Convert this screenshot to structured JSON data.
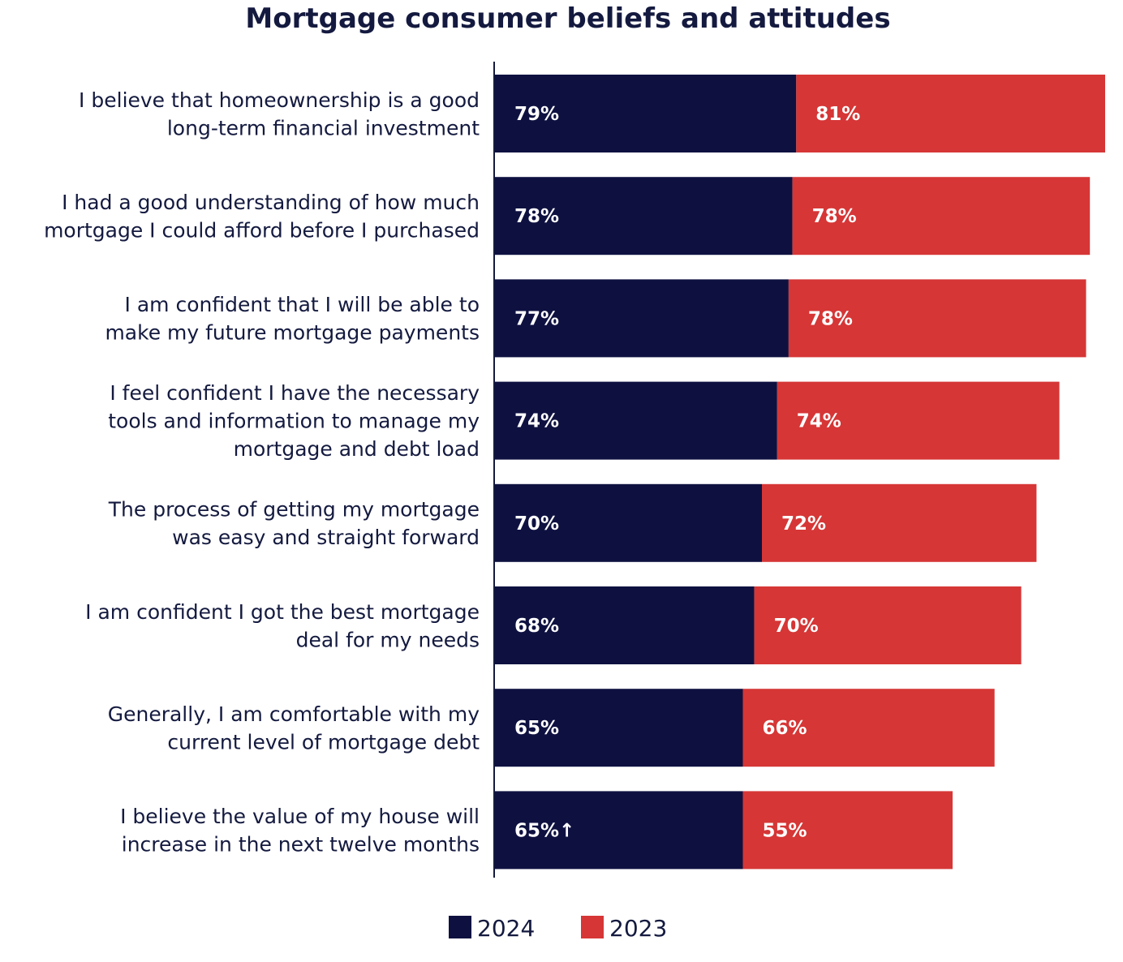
{
  "chart_data": {
    "type": "bar",
    "orientation": "horizontal",
    "stacked": true,
    "title": "Mortgage consumer beliefs and attitudes",
    "xlabel": "",
    "ylabel": "",
    "grid": false,
    "legend_position": "bottom-center",
    "categories": [
      [
        "I believe that homeownership is a good",
        "long-term financial investment"
      ],
      [
        "I had a good understanding of how much",
        "mortgage I could afford before I purchased"
      ],
      [
        "I am confident that I will be able to",
        "make my future mortgage payments"
      ],
      [
        "I feel confident I have the necessary",
        "tools and information to manage my",
        "mortgage and debt load"
      ],
      [
        "The process of getting my mortgage",
        "was easy and straight forward"
      ],
      [
        "I am confident I got the best mortgage",
        "deal for my needs"
      ],
      [
        "Generally, I am comfortable with my",
        "current level of mortgage debt"
      ],
      [
        "I believe the value of my house will",
        "increase in the next twelve months"
      ]
    ],
    "series": [
      {
        "name": "2024",
        "color": "#0e1140",
        "values": [
          79,
          78,
          77,
          74,
          70,
          68,
          65,
          65
        ],
        "labels": [
          "79%",
          "78%",
          "77%",
          "74%",
          "70%",
          "68%",
          "65%",
          "65%↑"
        ]
      },
      {
        "name": "2023",
        "color": "#d63636",
        "values": [
          81,
          78,
          78,
          74,
          72,
          70,
          66,
          55
        ],
        "labels": [
          "81%",
          "78%",
          "78%",
          "74%",
          "72%",
          "70%",
          "66%",
          "55%"
        ]
      }
    ]
  }
}
